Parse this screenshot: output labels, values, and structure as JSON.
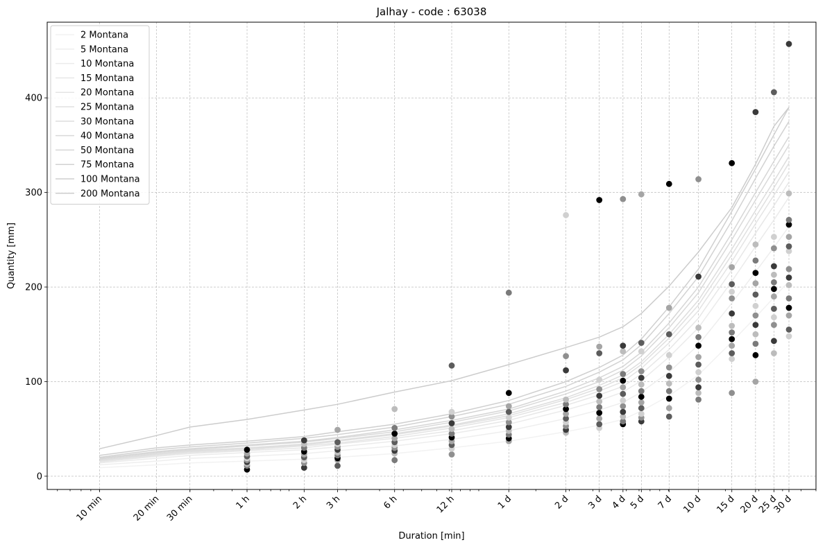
{
  "chart_data": {
    "type": "line",
    "title": "Jalhay - code : 63038",
    "xlabel": "Duration [min]",
    "ylabel": "Quantity [mm]",
    "x_scale": "log",
    "xlim": [
      5.3,
      60000
    ],
    "ylim": [
      -14,
      480
    ],
    "grid": true,
    "legend_position": "top-left",
    "x_ticks": [
      {
        "value": 10,
        "label": "10 min"
      },
      {
        "value": 20,
        "label": "20 min"
      },
      {
        "value": 30,
        "label": "30 min"
      },
      {
        "value": 60,
        "label": "1 h"
      },
      {
        "value": 120,
        "label": "2 h"
      },
      {
        "value": 180,
        "label": "3 h"
      },
      {
        "value": 360,
        "label": "6 h"
      },
      {
        "value": 720,
        "label": "12 h"
      },
      {
        "value": 1440,
        "label": "1 d"
      },
      {
        "value": 2880,
        "label": "2 d"
      },
      {
        "value": 4320,
        "label": "3 d"
      },
      {
        "value": 5760,
        "label": "4 d"
      },
      {
        "value": 7200,
        "label": "5 d"
      },
      {
        "value": 10080,
        "label": "7 d"
      },
      {
        "value": 14400,
        "label": "10 d"
      },
      {
        "value": 21600,
        "label": "15 d"
      },
      {
        "value": 28800,
        "label": "20 d"
      },
      {
        "value": 36000,
        "label": "25 d"
      },
      {
        "value": 43200,
        "label": "30 d"
      }
    ],
    "y_ticks": [
      {
        "value": 0,
        "label": "0"
      },
      {
        "value": 100,
        "label": "100"
      },
      {
        "value": 200,
        "label": "200"
      },
      {
        "value": 300,
        "label": "300"
      },
      {
        "value": 400,
        "label": "400"
      }
    ],
    "x": [
      10,
      20,
      30,
      60,
      120,
      180,
      360,
      720,
      1440,
      2880,
      4320,
      5760,
      7200,
      10080,
      14400,
      21600,
      28800,
      36000,
      43200
    ],
    "series": [
      {
        "name": "2 Montana",
        "color": "#f2f2f2",
        "values": [
          9,
          12,
          14,
          16,
          18,
          20,
          24,
          30,
          37,
          47,
          54,
          60,
          69,
          85,
          107,
          142,
          168,
          189,
          206
        ]
      },
      {
        "name": "5 Montana",
        "color": "#eeeeee",
        "values": [
          12,
          16,
          19,
          21,
          24,
          27,
          32,
          39,
          48,
          61,
          70,
          78,
          89,
          110,
          139,
          183,
          216,
          242,
          264
        ]
      },
      {
        "name": "10 Montana",
        "color": "#ebebeb",
        "values": [
          14,
          19,
          22,
          25,
          28,
          31,
          37,
          45,
          55,
          70,
          80,
          89,
          101,
          126,
          157,
          206,
          243,
          271,
          295
        ]
      },
      {
        "name": "15 Montana",
        "color": "#e7e7e7",
        "values": [
          15,
          21,
          24,
          27,
          30,
          34,
          40,
          48,
          59,
          75,
          86,
          95,
          108,
          134,
          167,
          218,
          257,
          286,
          311
        ]
      },
      {
        "name": "20 Montana",
        "color": "#e4e4e4",
        "values": [
          16,
          22,
          25,
          28,
          32,
          35,
          42,
          51,
          62,
          78,
          90,
          100,
          114,
          141,
          175,
          227,
          267,
          297,
          322
        ]
      },
      {
        "name": "25 Montana",
        "color": "#e0e0e0",
        "values": [
          17,
          23,
          26,
          29,
          33,
          37,
          44,
          53,
          64,
          81,
          93,
          104,
          118,
          146,
          181,
          234,
          274,
          305,
          331
        ]
      },
      {
        "name": "30 Montana",
        "color": "#dddddd",
        "values": [
          17,
          24,
          27,
          30,
          34,
          38,
          45,
          54,
          66,
          83,
          96,
          107,
          121,
          150,
          186,
          240,
          281,
          312,
          338
        ]
      },
      {
        "name": "40 Montana",
        "color": "#d9d9d9",
        "values": [
          18,
          25,
          28,
          32,
          36,
          40,
          47,
          57,
          69,
          87,
          100,
          112,
          127,
          157,
          194,
          250,
          292,
          324,
          350
        ]
      },
      {
        "name": "50 Montana",
        "color": "#d6d6d6",
        "values": [
          19,
          26,
          29,
          33,
          37,
          41,
          49,
          59,
          71,
          90,
          104,
          116,
          131,
          162,
          200,
          257,
          300,
          333,
          359
        ]
      },
      {
        "name": "75 Montana",
        "color": "#d2d2d2",
        "values": [
          20,
          28,
          31,
          35,
          40,
          44,
          52,
          63,
          76,
          95,
          110,
          123,
          139,
          172,
          211,
          270,
          315,
          349,
          375
        ]
      },
      {
        "name": "100 Montana",
        "color": "#cfcfcf",
        "values": [
          22,
          30,
          33,
          37,
          42,
          47,
          55,
          66,
          80,
          100,
          115,
          128,
          145,
          179,
          219,
          280,
          325,
          361,
          390
        ]
      },
      {
        "name": "200 Montana",
        "color": "#cccccc",
        "values": [
          29,
          43,
          52,
          60,
          70,
          76,
          89,
          101,
          118,
          136,
          147,
          158,
          172,
          201,
          237,
          284,
          330,
          370,
          390
        ]
      }
    ],
    "observations": [
      {
        "x": 60,
        "values": [
          7,
          11,
          13,
          15,
          17,
          19,
          21,
          24,
          28
        ]
      },
      {
        "x": 120,
        "values": [
          9,
          14,
          17,
          20,
          23,
          26,
          30,
          34,
          38
        ]
      },
      {
        "x": 180,
        "values": [
          11,
          17,
          19,
          22,
          25,
          28,
          31,
          34,
          36,
          49
        ]
      },
      {
        "x": 360,
        "values": [
          17,
          24,
          27,
          30,
          33,
          36,
          40,
          45,
          51,
          71
        ]
      },
      {
        "x": 720,
        "values": [
          23,
          29,
          33,
          37,
          41,
          45,
          50,
          56,
          63,
          68,
          117
        ]
      },
      {
        "x": 1440,
        "values": [
          37,
          40,
          44,
          48,
          52,
          57,
          62,
          68,
          74,
          88,
          194
        ]
      },
      {
        "x": 2880,
        "values": [
          46,
          49,
          53,
          57,
          61,
          66,
          71,
          76,
          81,
          112,
          127,
          276
        ]
      },
      {
        "x": 4320,
        "values": [
          51,
          55,
          61,
          67,
          73,
          79,
          85,
          92,
          102,
          130,
          137,
          292
        ]
      },
      {
        "x": 5760,
        "values": [
          55,
          58,
          63,
          68,
          74,
          80,
          87,
          94,
          101,
          108,
          132,
          138,
          293
        ]
      },
      {
        "x": 7200,
        "values": [
          58,
          62,
          66,
          72,
          78,
          84,
          90,
          97,
          104,
          111,
          132,
          141,
          298
        ]
      },
      {
        "x": 10080,
        "values": [
          63,
          72,
          82,
          90,
          98,
          106,
          115,
          128,
          150,
          178,
          309
        ]
      },
      {
        "x": 14400,
        "values": [
          81,
          88,
          94,
          102,
          110,
          118,
          126,
          138,
          147,
          157,
          211,
          314
        ]
      },
      {
        "x": 21600,
        "values": [
          88,
          124,
          130,
          138,
          145,
          152,
          159,
          172,
          188,
          195,
          203,
          221,
          331
        ]
      },
      {
        "x": 28800,
        "values": [
          100,
          128,
          140,
          150,
          160,
          170,
          180,
          192,
          204,
          215,
          228,
          245,
          385
        ]
      },
      {
        "x": 36000,
        "values": [
          130,
          143,
          160,
          168,
          177,
          190,
          198,
          205,
          213,
          222,
          241,
          253,
          406
        ]
      },
      {
        "x": 43200,
        "values": [
          148,
          155,
          170,
          178,
          188,
          202,
          210,
          219,
          238,
          243,
          253,
          266,
          271,
          299,
          457
        ]
      }
    ]
  }
}
